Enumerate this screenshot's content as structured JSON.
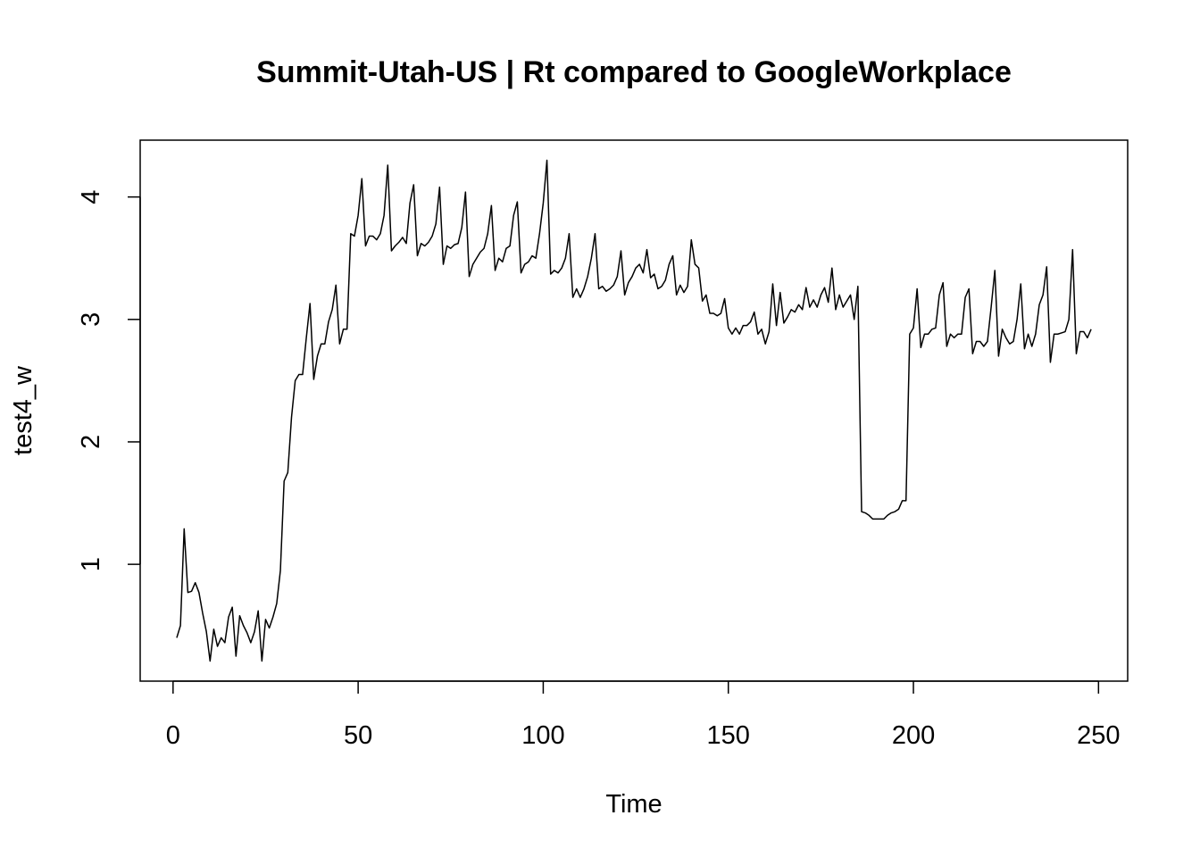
{
  "chart_data": {
    "type": "line",
    "title": "Summit-Utah-US | Rt compared to GoogleWorkplace",
    "xlabel": "Time",
    "ylabel": "test4_w",
    "color": "#000000",
    "xlim": [
      -8.88,
      257.88
    ],
    "ylim": [
      0.046,
      4.464
    ],
    "xticks": [
      0,
      50,
      100,
      150,
      200,
      250
    ],
    "yticks": [
      1,
      2,
      3,
      4
    ],
    "x": [
      1,
      2,
      3,
      4,
      5,
      6,
      7,
      8,
      9,
      10,
      11,
      12,
      13,
      14,
      15,
      16,
      17,
      18,
      19,
      20,
      21,
      22,
      23,
      24,
      25,
      26,
      27,
      28,
      29,
      30,
      31,
      32,
      33,
      34,
      35,
      36,
      37,
      38,
      39,
      40,
      41,
      42,
      43,
      44,
      45,
      46,
      47,
      48,
      49,
      50,
      51,
      52,
      53,
      54,
      55,
      56,
      57,
      58,
      59,
      60,
      61,
      62,
      63,
      64,
      65,
      66,
      67,
      68,
      69,
      70,
      71,
      72,
      73,
      74,
      75,
      76,
      77,
      78,
      79,
      80,
      81,
      82,
      83,
      84,
      85,
      86,
      87,
      88,
      89,
      90,
      91,
      92,
      93,
      94,
      95,
      96,
      97,
      98,
      99,
      100,
      101,
      102,
      103,
      104,
      105,
      106,
      107,
      108,
      109,
      110,
      111,
      112,
      113,
      114,
      115,
      116,
      117,
      118,
      119,
      120,
      121,
      122,
      123,
      124,
      125,
      126,
      127,
      128,
      129,
      130,
      131,
      132,
      133,
      134,
      135,
      136,
      137,
      138,
      139,
      140,
      141,
      142,
      143,
      144,
      145,
      146,
      147,
      148,
      149,
      150,
      151,
      152,
      153,
      154,
      155,
      156,
      157,
      158,
      159,
      160,
      161,
      162,
      163,
      164,
      165,
      166,
      167,
      168,
      169,
      170,
      171,
      172,
      173,
      174,
      175,
      176,
      177,
      178,
      179,
      180,
      181,
      182,
      183,
      184,
      185,
      186,
      187,
      188,
      189,
      190,
      191,
      192,
      193,
      194,
      195,
      196,
      197,
      198,
      199,
      200,
      201,
      202,
      203,
      204,
      205,
      206,
      207,
      208,
      209,
      210,
      211,
      212,
      213,
      214,
      215,
      216,
      217,
      218,
      219,
      220,
      221,
      222,
      223,
      224,
      225,
      226,
      227,
      228,
      229,
      230,
      231,
      232,
      233,
      234,
      235,
      236,
      237,
      238,
      239,
      240,
      241,
      242,
      243,
      244,
      245,
      246,
      247,
      248
    ],
    "values": [
      0.4,
      0.5,
      1.29,
      0.77,
      0.78,
      0.85,
      0.77,
      0.6,
      0.45,
      0.21,
      0.47,
      0.33,
      0.4,
      0.36,
      0.57,
      0.65,
      0.25,
      0.58,
      0.5,
      0.44,
      0.36,
      0.45,
      0.62,
      0.21,
      0.55,
      0.48,
      0.57,
      0.68,
      0.95,
      1.68,
      1.75,
      2.2,
      2.5,
      2.55,
      2.55,
      2.85,
      3.13,
      2.51,
      2.7,
      2.8,
      2.8,
      2.98,
      3.08,
      3.28,
      2.8,
      2.92,
      2.92,
      3.7,
      3.68,
      3.85,
      4.15,
      3.6,
      3.68,
      3.68,
      3.65,
      3.7,
      3.85,
      4.26,
      3.56,
      3.6,
      3.63,
      3.67,
      3.62,
      3.95,
      4.1,
      3.52,
      3.62,
      3.6,
      3.63,
      3.68,
      3.78,
      4.08,
      3.45,
      3.6,
      3.58,
      3.61,
      3.62,
      3.75,
      4.04,
      3.35,
      3.45,
      3.5,
      3.55,
      3.58,
      3.7,
      3.93,
      3.4,
      3.5,
      3.47,
      3.58,
      3.6,
      3.85,
      3.96,
      3.38,
      3.45,
      3.47,
      3.52,
      3.5,
      3.7,
      3.95,
      4.3,
      3.37,
      3.4,
      3.38,
      3.42,
      3.5,
      3.7,
      3.18,
      3.25,
      3.18,
      3.25,
      3.35,
      3.5,
      3.7,
      3.25,
      3.27,
      3.23,
      3.25,
      3.28,
      3.35,
      3.56,
      3.2,
      3.3,
      3.35,
      3.42,
      3.45,
      3.38,
      3.57,
      3.34,
      3.37,
      3.25,
      3.27,
      3.32,
      3.45,
      3.52,
      3.2,
      3.28,
      3.22,
      3.27,
      3.65,
      3.45,
      3.42,
      3.15,
      3.2,
      3.05,
      3.05,
      3.03,
      3.05,
      3.17,
      2.93,
      2.88,
      2.93,
      2.88,
      2.95,
      2.95,
      2.98,
      3.06,
      2.88,
      2.92,
      2.8,
      2.9,
      3.29,
      2.95,
      3.22,
      2.97,
      3.02,
      3.08,
      3.06,
      3.12,
      3.08,
      3.26,
      3.1,
      3.16,
      3.1,
      3.2,
      3.26,
      3.14,
      3.42,
      3.08,
      3.2,
      3.1,
      3.15,
      3.2,
      3.0,
      3.27,
      1.43,
      1.42,
      1.4,
      1.37,
      1.37,
      1.37,
      1.37,
      1.4,
      1.42,
      1.43,
      1.45,
      1.52,
      1.52,
      2.88,
      2.93,
      3.25,
      2.77,
      2.88,
      2.88,
      2.92,
      2.93,
      3.2,
      3.3,
      2.78,
      2.88,
      2.85,
      2.88,
      2.88,
      3.18,
      3.25,
      2.72,
      2.82,
      2.82,
      2.78,
      2.82,
      3.1,
      3.4,
      2.7,
      2.92,
      2.85,
      2.8,
      2.82,
      3.0,
      3.29,
      2.76,
      2.88,
      2.78,
      2.88,
      3.12,
      3.2,
      3.43,
      2.65,
      2.88,
      2.88,
      2.89,
      2.9,
      3.0,
      3.57,
      2.72,
      2.9,
      2.9,
      2.85,
      2.92
    ]
  }
}
